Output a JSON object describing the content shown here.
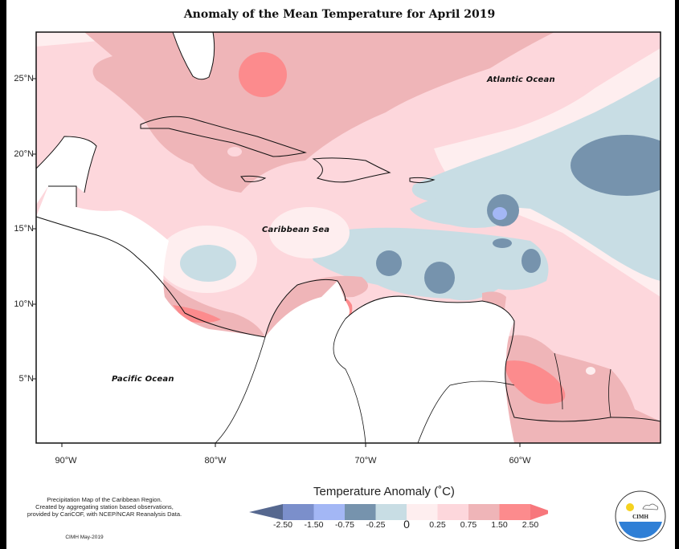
{
  "title": "Anomaly of the Mean Temperature for April 2019",
  "map": {
    "latitude_labels": [
      "25°N",
      "20°N",
      "15°N",
      "10°N",
      "5°N"
    ],
    "longitude_labels": [
      "90°W",
      "80°W",
      "70°W",
      "60°W"
    ],
    "ocean_labels": {
      "atlantic": "Atlantic Ocean",
      "caribbean": "Caribbean Sea",
      "pacific": "Pacific Ocean"
    },
    "extent": {
      "lon_min": -91.7,
      "lon_max": -50.8,
      "lat_min": 1.0,
      "lat_max": 28.3
    }
  },
  "legend": {
    "title": "Temperature Anomaly (˚C)",
    "tick_labels": [
      "-2.50",
      "-1.50",
      "-0.75",
      "-0.25",
      "0",
      "0.25",
      "0.75",
      "1.50",
      "2.50"
    ],
    "classes": [
      {
        "range": "< -2.50",
        "color": "#56688f"
      },
      {
        "range": "-2.50 to -1.50",
        "color": "#7b8fcb"
      },
      {
        "range": "-1.50 to -0.75",
        "color": "#a3b7f5"
      },
      {
        "range": "-0.75 to -0.25",
        "color": "#7693ad"
      },
      {
        "range": "-0.25 to 0",
        "color": "#c8dde4"
      },
      {
        "range": "0 to 0.25",
        "color": "#feeeef"
      },
      {
        "range": "0.25 to 0.75",
        "color": "#fdd7dc"
      },
      {
        "range": "0.75 to 1.50",
        "color": "#efb5b8"
      },
      {
        "range": "1.50 to 2.50",
        "color": "#fc8b8d"
      },
      {
        "range": "> 2.50",
        "color": "#f7777c"
      }
    ]
  },
  "credits": {
    "lines": [
      "Precipitation Map of the Caribbean Region.",
      "Created by aggregating station based observations,",
      "provided by CariCOF, with NCEP/NCAR Reanalysis Data."
    ],
    "date": "CIMH May-2019"
  },
  "logo": {
    "text": "CIMH"
  }
}
